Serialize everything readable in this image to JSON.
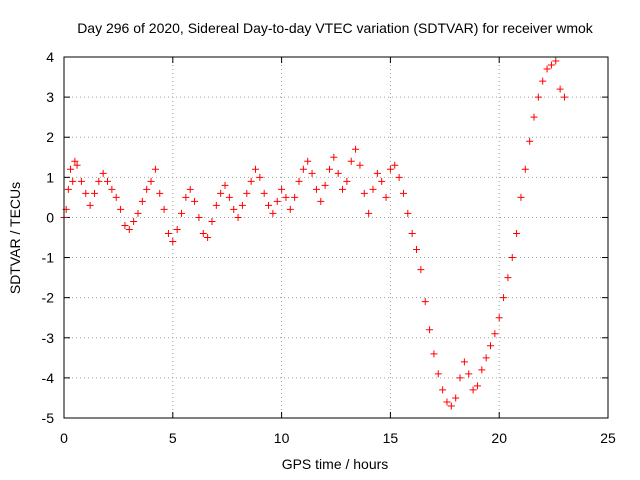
{
  "chart_data": {
    "type": "scatter",
    "title": "Day 296 of 2020, Sidereal Day-to-day VTEC variation (SDTVAR) for receiver wmok",
    "xlabel": "GPS time / hours",
    "ylabel": "SDTVAR / TECUs",
    "xlim": [
      0,
      25
    ],
    "ylim": [
      -5,
      4
    ],
    "xticks": [
      0,
      5,
      10,
      15,
      20,
      25
    ],
    "yticks": [
      -5,
      -4,
      -3,
      -2,
      -1,
      0,
      1,
      2,
      3,
      4
    ],
    "grid": true,
    "marker": "+",
    "color": "#ff0000",
    "series": [
      {
        "name": "SDTVAR",
        "x": [
          0.0,
          0.1,
          0.2,
          0.3,
          0.4,
          0.5,
          0.6,
          0.8,
          1.0,
          1.2,
          1.4,
          1.6,
          1.8,
          2.0,
          2.2,
          2.4,
          2.6,
          2.8,
          3.0,
          3.2,
          3.4,
          3.6,
          3.8,
          4.0,
          4.2,
          4.4,
          4.6,
          4.8,
          5.0,
          5.2,
          5.4,
          5.6,
          5.8,
          6.0,
          6.2,
          6.4,
          6.6,
          6.8,
          7.0,
          7.2,
          7.4,
          7.6,
          7.8,
          8.0,
          8.2,
          8.4,
          8.6,
          8.8,
          9.0,
          9.2,
          9.4,
          9.6,
          9.8,
          10.0,
          10.2,
          10.4,
          10.6,
          10.8,
          11.0,
          11.2,
          11.4,
          11.6,
          11.8,
          12.0,
          12.2,
          12.4,
          12.6,
          12.8,
          13.0,
          13.2,
          13.4,
          13.6,
          13.8,
          14.0,
          14.2,
          14.4,
          14.6,
          14.8,
          15.0,
          15.2,
          15.4,
          15.6,
          15.8,
          16.0,
          16.2,
          16.4,
          16.6,
          16.8,
          17.0,
          17.2,
          17.4,
          17.6,
          17.8,
          18.0,
          18.2,
          18.4,
          18.6,
          18.8,
          19.0,
          19.2,
          19.4,
          19.6,
          19.8,
          20.0,
          20.2,
          20.4,
          20.6,
          20.8,
          21.0,
          21.2,
          21.4,
          21.6,
          21.8,
          22.0,
          22.2,
          22.4,
          22.6,
          22.8,
          23.0
        ],
        "y": [
          0.0,
          0.2,
          0.7,
          1.2,
          0.9,
          1.4,
          1.3,
          0.9,
          0.6,
          0.3,
          0.6,
          0.9,
          1.1,
          0.9,
          0.7,
          0.5,
          0.2,
          -0.2,
          -0.3,
          -0.1,
          0.1,
          0.4,
          0.7,
          0.9,
          1.2,
          0.6,
          0.2,
          -0.4,
          -0.6,
          -0.3,
          0.1,
          0.5,
          0.7,
          0.4,
          0.0,
          -0.4,
          -0.5,
          -0.1,
          0.3,
          0.6,
          0.8,
          0.5,
          0.2,
          0.0,
          0.3,
          0.6,
          0.9,
          1.2,
          1.0,
          0.6,
          0.3,
          0.1,
          0.4,
          0.7,
          0.5,
          0.2,
          0.5,
          0.9,
          1.2,
          1.4,
          1.1,
          0.7,
          0.4,
          0.8,
          1.2,
          1.5,
          1.1,
          0.7,
          0.9,
          1.4,
          1.7,
          1.3,
          0.6,
          0.1,
          0.7,
          1.1,
          0.9,
          0.5,
          1.2,
          1.3,
          1.0,
          0.6,
          0.1,
          -0.4,
          -0.8,
          -1.3,
          -2.1,
          -2.8,
          -3.4,
          -3.9,
          -4.3,
          -4.6,
          -4.7,
          -4.5,
          -4.0,
          -3.6,
          -3.9,
          -4.3,
          -4.2,
          -3.8,
          -3.5,
          -3.2,
          -2.9,
          -2.5,
          -2.0,
          -1.5,
          -1.0,
          -0.4,
          0.5,
          1.2,
          1.9,
          2.5,
          3.0,
          3.4,
          3.7,
          3.8,
          3.9,
          3.2,
          3.0
        ]
      }
    ]
  }
}
